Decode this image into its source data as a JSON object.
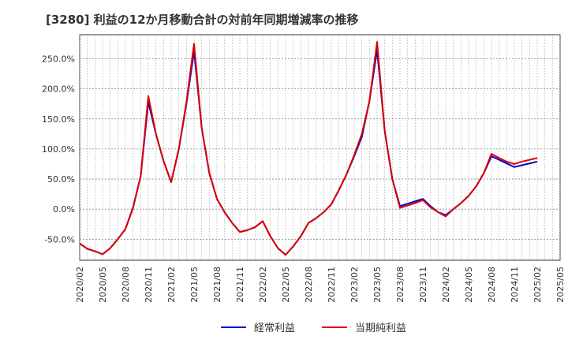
{
  "chart_data": {
    "type": "line",
    "title": "[3280]  利益の12か月移動合計の対前年同期増減率の推移",
    "xlabel": "",
    "ylabel": "",
    "ylim": [
      -85,
      290
    ],
    "y_ticks": [
      -50,
      0,
      50,
      100,
      150,
      200,
      250
    ],
    "y_tick_labels": [
      "-50.0%",
      "0.0%",
      "50.0%",
      "100.0%",
      "150.0%",
      "200.0%",
      "250.0%"
    ],
    "x_tick_labels": [
      "2020/02",
      "2020/05",
      "2020/08",
      "2020/11",
      "2021/02",
      "2021/05",
      "2021/08",
      "2021/11",
      "2022/02",
      "2022/05",
      "2022/08",
      "2022/11",
      "2023/02",
      "2023/05",
      "2023/08",
      "2023/11",
      "2024/02",
      "2024/05",
      "2024/08",
      "2024/11",
      "2025/02",
      "2025/05"
    ],
    "x": [
      "2020/02",
      "2020/03",
      "2020/04",
      "2020/05",
      "2020/06",
      "2020/07",
      "2020/08",
      "2020/09",
      "2020/10",
      "2020/11",
      "2020/12",
      "2021/01",
      "2021/02",
      "2021/03",
      "2021/04",
      "2021/05",
      "2021/06",
      "2021/07",
      "2021/08",
      "2021/09",
      "2021/10",
      "2021/11",
      "2021/12",
      "2022/01",
      "2022/02",
      "2022/03",
      "2022/04",
      "2022/05",
      "2022/06",
      "2022/07",
      "2022/08",
      "2022/09",
      "2022/10",
      "2022/11",
      "2022/12",
      "2023/01",
      "2023/02",
      "2023/03",
      "2023/04",
      "2023/05",
      "2023/06",
      "2023/07",
      "2023/08",
      "2023/09",
      "2023/10",
      "2023/11",
      "2023/12",
      "2024/01",
      "2024/02",
      "2024/03",
      "2024/04",
      "2024/05",
      "2024/06",
      "2024/07",
      "2024/08",
      "2024/09",
      "2024/10",
      "2024/11",
      "2024/12",
      "2025/01",
      "2025/02"
    ],
    "series": [
      {
        "name": "経常利益",
        "color": "#0000cc",
        "values": [
          -57,
          -66,
          -70,
          -75,
          -65,
          -50,
          -33,
          3,
          55,
          178,
          125,
          80,
          45,
          100,
          175,
          263,
          135,
          60,
          17,
          -5,
          -23,
          -38,
          -35,
          -30,
          -20,
          -45,
          -65,
          -76,
          -62,
          -45,
          -23,
          -15,
          -5,
          8,
          32,
          58,
          88,
          120,
          180,
          265,
          130,
          50,
          5,
          9,
          13,
          17,
          5,
          -5,
          -10,
          0,
          10,
          22,
          38,
          60,
          88,
          82,
          76,
          70,
          73,
          76,
          79
        ]
      },
      {
        "name": "当期純利益",
        "color": "#dd0000",
        "values": [
          -57,
          -66,
          -70,
          -75,
          -65,
          -50,
          -33,
          2,
          55,
          188,
          125,
          80,
          45,
          100,
          178,
          275,
          135,
          60,
          17,
          -5,
          -23,
          -38,
          -35,
          -30,
          -20,
          -45,
          -65,
          -76,
          -62,
          -45,
          -23,
          -15,
          -5,
          8,
          32,
          58,
          90,
          125,
          180,
          278,
          130,
          50,
          2,
          6,
          10,
          15,
          3,
          -5,
          -12,
          0,
          10,
          22,
          38,
          60,
          92,
          85,
          79,
          75,
          79,
          82,
          85
        ]
      }
    ],
    "legend": {
      "placement": "bottom-center",
      "entries": [
        "経常利益",
        "当期純利益"
      ]
    },
    "grid": true
  }
}
